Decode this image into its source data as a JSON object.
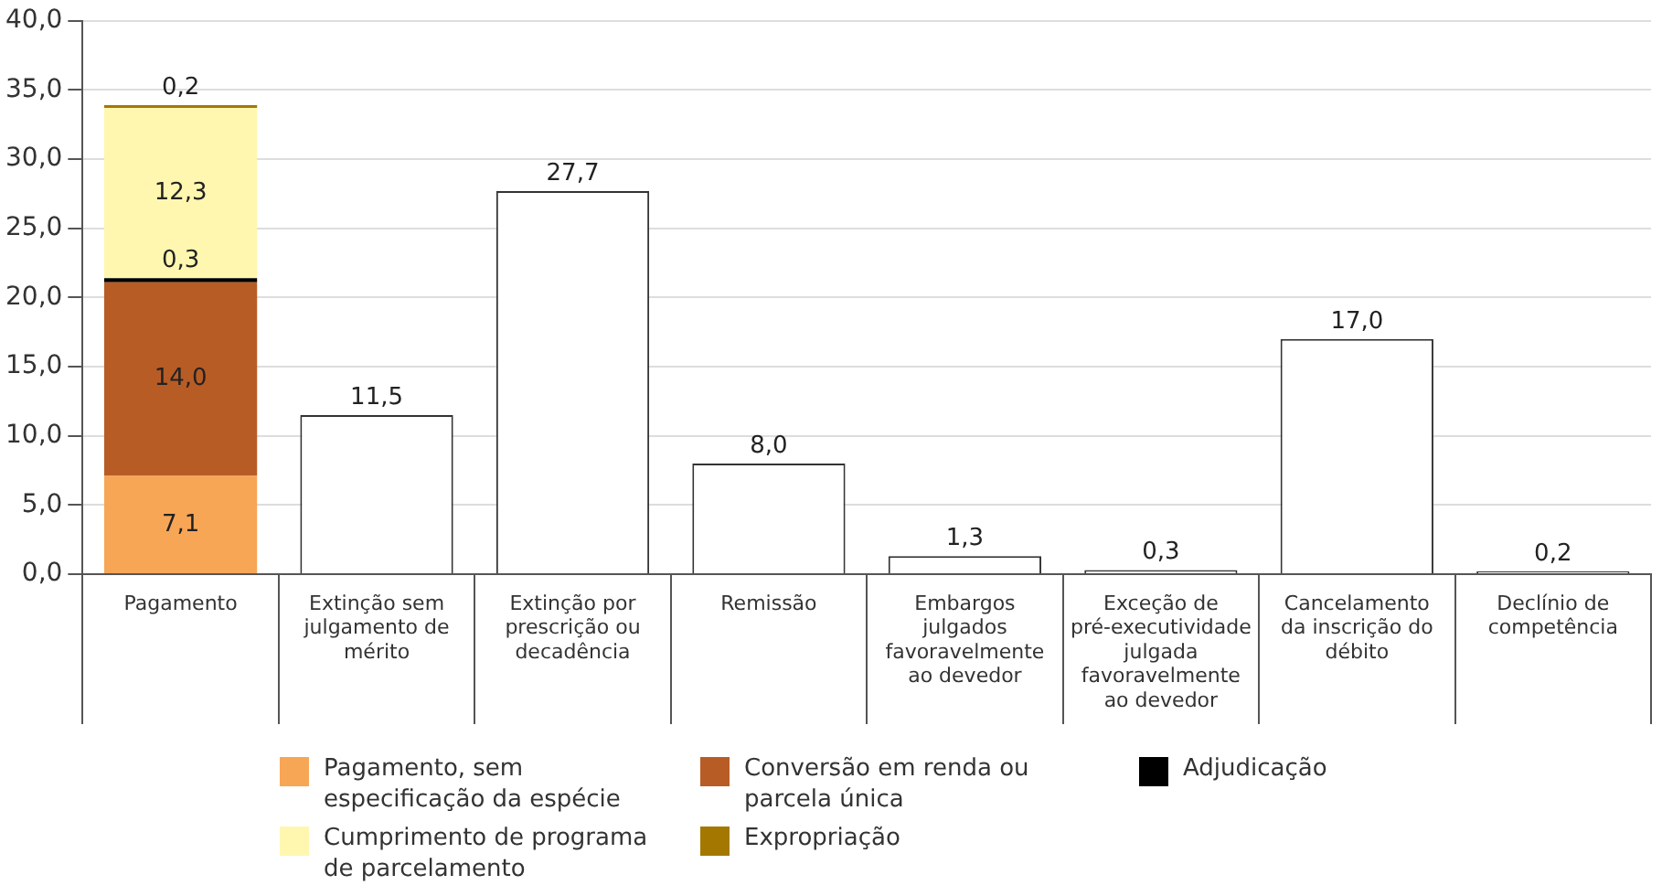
{
  "chart_data": {
    "type": "bar",
    "stacked": true,
    "categories": [
      "Pagamento",
      "Extinção sem julgamento de mérito",
      "Extinção por prescrição ou decadência",
      "Remissão",
      "Embargos julgados favoravelmente ao devedor",
      "Exceção de pré-executividade julgada favoravelmente ao devedor",
      "Cancelamento da inscrição do débito",
      "Declínio de competência"
    ],
    "series": [
      {
        "name": "Pagamento, sem especificação da espécie",
        "color": "#f7a656",
        "values": [
          7.1,
          null,
          null,
          null,
          null,
          null,
          null,
          null
        ],
        "value_labels": [
          "7,1",
          null,
          null,
          null,
          null,
          null,
          null,
          null
        ]
      },
      {
        "name": "Conversão em renda ou parcela única",
        "color": "#b85c25",
        "values": [
          14.0,
          null,
          null,
          null,
          null,
          null,
          null,
          null
        ],
        "value_labels": [
          "14,0",
          null,
          null,
          null,
          null,
          null,
          null,
          null
        ]
      },
      {
        "name": "Adjudicação",
        "color": "#000000",
        "values": [
          0.3,
          null,
          null,
          null,
          null,
          null,
          null,
          null
        ],
        "value_labels": [
          "0,3",
          null,
          null,
          null,
          null,
          null,
          null,
          null
        ]
      },
      {
        "name": "Cumprimento de programa de parcelamento",
        "color": "#fff7b0",
        "values": [
          12.3,
          null,
          null,
          null,
          null,
          null,
          null,
          null
        ],
        "value_labels": [
          "12,3",
          null,
          null,
          null,
          null,
          null,
          null,
          null
        ]
      },
      {
        "name": "Expropriação",
        "color": "#a47800",
        "values": [
          0.2,
          null,
          null,
          null,
          null,
          null,
          null,
          null
        ],
        "value_labels": [
          "0,2",
          null,
          null,
          null,
          null,
          null,
          null,
          null
        ]
      },
      {
        "color": "#ffffff",
        "values": [
          null,
          11.5,
          27.7,
          8.0,
          1.3,
          0.3,
          17.0,
          0.2
        ],
        "value_labels": [
          null,
          "11,5",
          "27,7",
          "8,0",
          "1,3",
          "0,3",
          "17,0",
          "0,2"
        ]
      }
    ],
    "ylim": [
      0,
      40
    ],
    "yticks": [
      {
        "value": 0,
        "label": "0,0"
      },
      {
        "value": 5,
        "label": "5,0"
      },
      {
        "value": 10,
        "label": "10,0"
      },
      {
        "value": 15,
        "label": "15,0"
      },
      {
        "value": 20,
        "label": "20,0"
      },
      {
        "value": 25,
        "label": "25,0"
      },
      {
        "value": 30,
        "label": "30,0"
      },
      {
        "value": 35,
        "label": "35,0"
      },
      {
        "value": 40,
        "label": "40,0"
      }
    ],
    "grid": "y",
    "legend": "bottom"
  }
}
